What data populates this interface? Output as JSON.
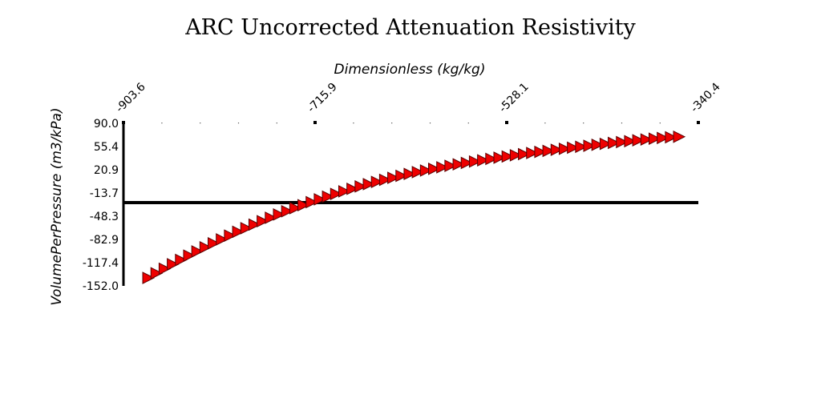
{
  "chart_data": {
    "type": "scatter",
    "title": "ARC Uncorrected Attenuation Resistivity",
    "xlabel": "Dimensionless (kg/kg)",
    "ylabel": "VolumePerPressure (m3/kPa)",
    "x_axis_position": "top",
    "xlim": [
      -903.6,
      -340.4
    ],
    "ylim": [
      -152.0,
      90.0
    ],
    "x_ticks": [
      "-903.6",
      "-715.9",
      "-528.1",
      "-340.4"
    ],
    "y_ticks": [
      "90.0",
      "55.4",
      "20.9",
      "-13.7",
      "-48.3",
      "-82.9",
      "-117.4",
      "-152.0"
    ],
    "reference_line_y": -28,
    "grid": false,
    "marker": "triangle-right",
    "colors": {
      "marker_fill": "#ee0000",
      "marker_edge": "#5a0000",
      "axis": "#000000"
    },
    "series": [
      {
        "x": [
          -880,
          -872,
          -864,
          -856,
          -848,
          -840,
          -832,
          -824,
          -816,
          -808,
          -800,
          -792,
          -784,
          -776,
          -768,
          -760,
          -752,
          -744,
          -736,
          -728,
          -720,
          -712,
          -704,
          -696,
          -688,
          -680,
          -672,
          -664,
          -656,
          -648,
          -640,
          -632,
          -624,
          -616,
          -608,
          -600,
          -592,
          -584,
          -576,
          -568,
          -560,
          -552,
          -544,
          -536,
          -528,
          -520,
          -512,
          -504,
          -496,
          -488,
          -480,
          -472,
          -464,
          -456,
          -448,
          -440,
          -432,
          -424,
          -416,
          -408,
          -400,
          -392,
          -384,
          -376,
          -368,
          -360
        ],
        "y": [
          -140.1,
          -133.2,
          -126.4,
          -119.8,
          -113.3,
          -106.9,
          -100.7,
          -94.6,
          -88.6,
          -82.8,
          -77.1,
          -71.5,
          -66.1,
          -60.8,
          -55.6,
          -50.6,
          -45.7,
          -40.9,
          -36.3,
          -31.8,
          -27.4,
          -23.2,
          -19.1,
          -15.1,
          -11.3,
          -7.6,
          -4.0,
          -0.6,
          2.7,
          5.9,
          8.9,
          11.8,
          14.6,
          17.3,
          19.8,
          22.2,
          24.5,
          26.8,
          28.9,
          31.0,
          33.1,
          35.0,
          37.0,
          38.8,
          40.6,
          42.4,
          44.1,
          45.8,
          47.4,
          49.0,
          50.6,
          52.1,
          53.7,
          55.1,
          56.6,
          58.0,
          59.4,
          60.8,
          62.1,
          63.4,
          64.7,
          65.9,
          67.1,
          68.2,
          69.2,
          70.0
        ]
      }
    ]
  }
}
